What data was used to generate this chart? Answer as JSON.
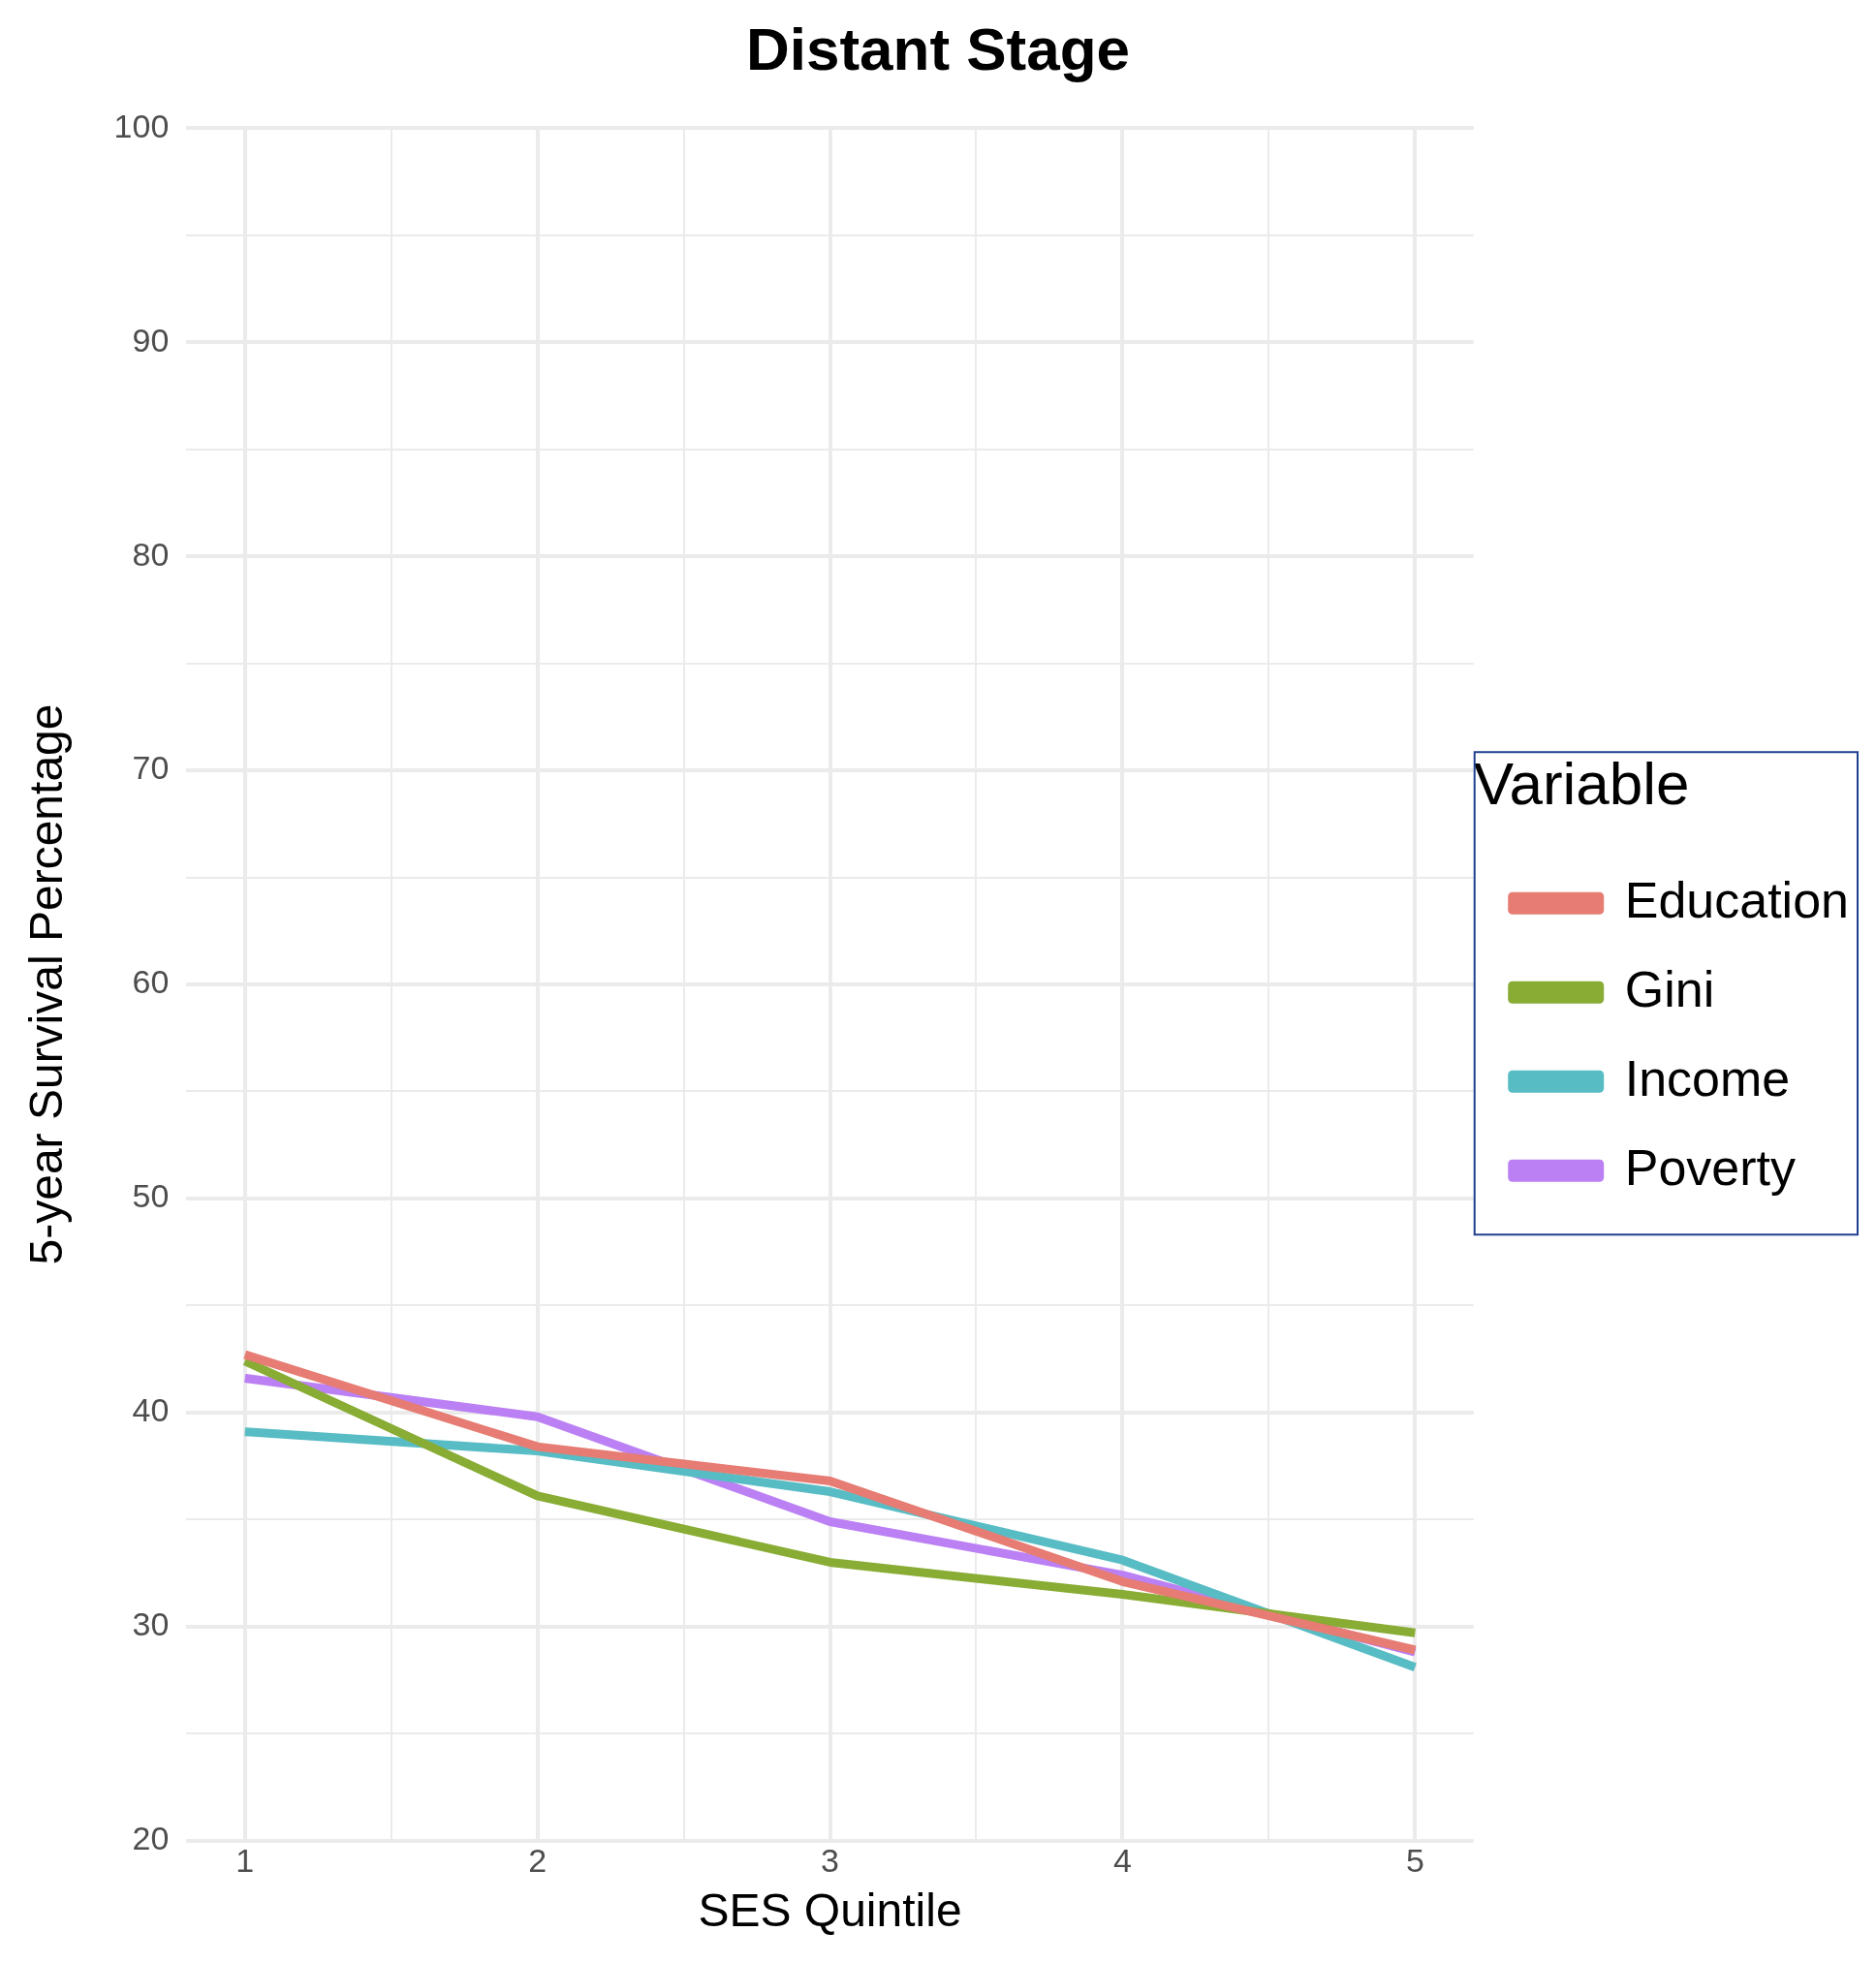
{
  "chart_data": {
    "type": "line",
    "title": "Distant Stage",
    "xlabel": "SES Quintile",
    "ylabel": "5-year Survival Percentage",
    "legend_title": "Variable",
    "legend": "right",
    "grid": true,
    "marker": "none",
    "line_style": "solid",
    "x": [
      1,
      2,
      3,
      4,
      5
    ],
    "xlim": [
      0.8,
      5.2
    ],
    "xticks": [
      1,
      {
        "value": 1.5,
        "label": null
      },
      2,
      {
        "value": 2.5,
        "label": null
      },
      3,
      {
        "value": 3.5,
        "label": null
      },
      4,
      {
        "value": 4.5,
        "label": null
      },
      5
    ],
    "ylim": [
      20,
      100
    ],
    "yticks": [
      20,
      {
        "value": 25,
        "label": null
      },
      30,
      {
        "value": 35,
        "label": null
      },
      40,
      {
        "value": 45,
        "label": null
      },
      50,
      {
        "value": 55,
        "label": null
      },
      60,
      {
        "value": 65,
        "label": null
      },
      70,
      {
        "value": 75,
        "label": null
      },
      80,
      {
        "value": 85,
        "label": null
      },
      90,
      {
        "value": 95,
        "label": null
      },
      100
    ],
    "series": [
      {
        "name": "Education",
        "color": "#e67c73",
        "values": [
          42.7,
          38.4,
          36.8,
          32.1,
          28.9
        ]
      },
      {
        "name": "Gini",
        "color": "#88ac34",
        "values": [
          42.4,
          36.1,
          33.0,
          31.5,
          29.7
        ]
      },
      {
        "name": "Income",
        "color": "#58bcc4",
        "values": [
          39.1,
          38.2,
          36.3,
          33.1,
          28.1
        ]
      },
      {
        "name": "Poverty",
        "color": "#bb80f4",
        "values": [
          41.6,
          39.8,
          34.9,
          32.4,
          28.8
        ]
      }
    ]
  }
}
